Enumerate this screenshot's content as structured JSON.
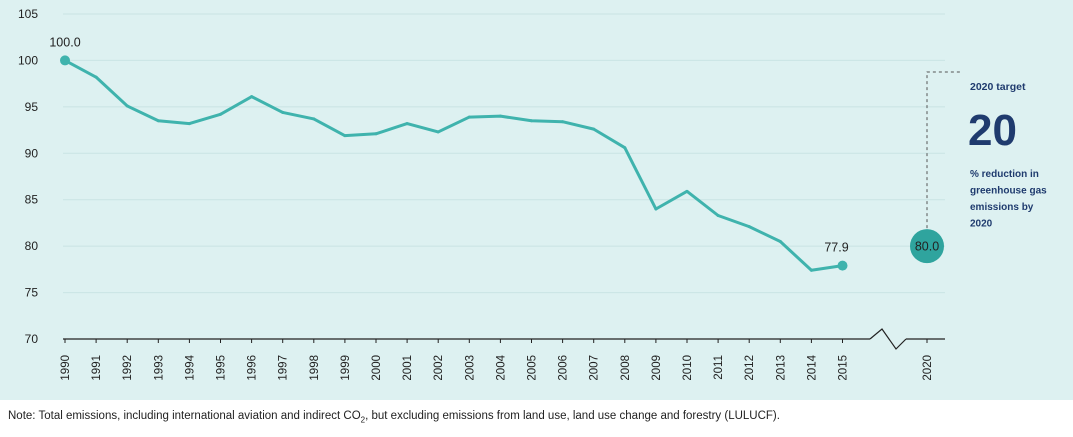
{
  "chart_data": {
    "type": "line",
    "x": [
      "1990",
      "1991",
      "1992",
      "1993",
      "1994",
      "1995",
      "1996",
      "1997",
      "1998",
      "1999",
      "2000",
      "2001",
      "2002",
      "2003",
      "2004",
      "2005",
      "2006",
      "2007",
      "2008",
      "2009",
      "2010",
      "2011",
      "2012",
      "2013",
      "2014",
      "2015"
    ],
    "series": [
      {
        "values": [
          100.0,
          98.2,
          95.1,
          93.5,
          93.2,
          94.2,
          96.1,
          94.4,
          93.7,
          91.9,
          92.1,
          93.2,
          92.3,
          93.9,
          94.0,
          93.5,
          93.4,
          92.6,
          90.6,
          84.0,
          85.9,
          83.3,
          82.1,
          80.5,
          77.4,
          77.9
        ]
      }
    ],
    "x_ticks": [
      "1990",
      "1991",
      "1992",
      "1993",
      "1994",
      "1995",
      "1996",
      "1997",
      "1998",
      "1999",
      "2000",
      "2001",
      "2002",
      "2003",
      "2004",
      "2005",
      "2006",
      "2007",
      "2008",
      "2009",
      "2010",
      "2011",
      "2012",
      "2013",
      "2014",
      "2015",
      "2020"
    ],
    "y_ticks": [
      70,
      75,
      80,
      85,
      90,
      95,
      100,
      105
    ],
    "ylim": [
      70,
      105
    ],
    "grid": "horizontal",
    "data_labels": {
      "start": "100.0",
      "end": "77.9"
    },
    "target": {
      "x": "2020",
      "value": 80.0,
      "label": "80.0",
      "title": "2020 target",
      "big_number": "20",
      "description_lines": [
        "% reduction in",
        "greenhouse gas",
        "emissions by",
        "2020"
      ]
    },
    "colors": {
      "background": "#ddf1f1",
      "line": "#3fb3ad",
      "target_circle": "#2fa49e",
      "big_number": "#1f3b6e",
      "axis": "#222222"
    }
  },
  "note": {
    "before": "Note: Total emissions, including international aviation and indirect CO",
    "subscript": "2",
    "after": ", but excluding emissions from land use, land use change and forestry (LULUCF)."
  }
}
